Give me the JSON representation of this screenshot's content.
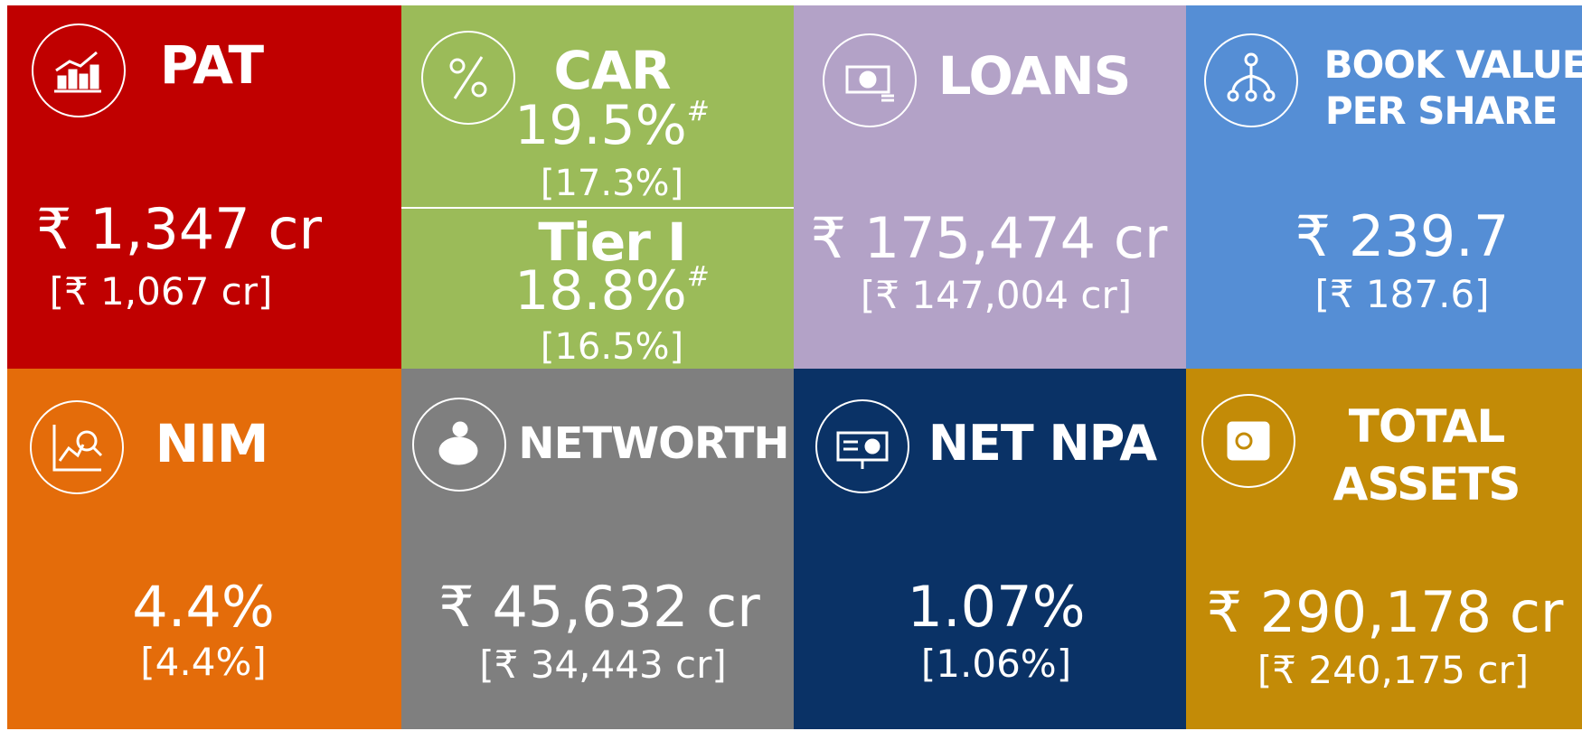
{
  "tiles": [
    {
      "title": [
        "PAT"
      ],
      "value": "₹ 1,347 cr",
      "previous": "[₹ 1,067 cr]",
      "color": "#c00000"
    },
    {
      "metrics": [
        {
          "title": "CAR",
          "value": "19.5%",
          "note": "#",
          "previous": "[17.3%]"
        },
        {
          "title": "Tier I",
          "value": "18.8%",
          "note": "#",
          "previous": "[16.5%]"
        }
      ],
      "color": "#9bbb59"
    },
    {
      "title": [
        "LOANS"
      ],
      "value": "₹ 175,474 cr",
      "previous": "[₹ 147,004 cr]",
      "color": "#b3a2c7"
    },
    {
      "title": [
        "BOOK VALUE",
        "PER SHARE"
      ],
      "value": "₹ 239.7",
      "previous": "[₹ 187.6]",
      "color": "#558ed5"
    },
    {
      "title": [
        "NIM"
      ],
      "value": "4.4%",
      "previous": "[4.4%]",
      "color": "#e46c0a"
    },
    {
      "title": [
        "NETWORTH"
      ],
      "value": "₹ 45,632 cr",
      "previous": "[₹ 34,443 cr]",
      "color": "#7f7f7f"
    },
    {
      "title": [
        "NET NPA"
      ],
      "value": "1.07%",
      "previous": "[1.06%]",
      "color": "#0a3266"
    },
    {
      "title": [
        "TOTAL",
        "ASSETS"
      ],
      "value": "₹ 290,178 cr",
      "previous": "[₹ 240,175 cr]",
      "color": "#c38b07"
    }
  ]
}
